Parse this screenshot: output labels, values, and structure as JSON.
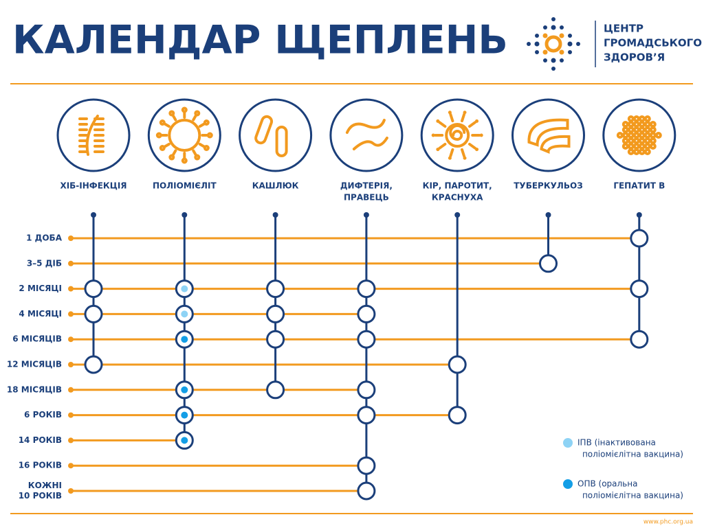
{
  "header": {
    "title": "КАЛЕНДАР ЩЕПЛЕНЬ",
    "logo": [
      "ЦЕНТР",
      "ГРОМАДСЬКОГО",
      "ЗДОРОВ’Я"
    ]
  },
  "diseases": [
    {
      "label": [
        "ХІБ-ІНФЕКЦІЯ"
      ],
      "doses": [
        2,
        3,
        5
      ]
    },
    {
      "label": [
        "ПОЛІОМІЄЛІТ"
      ],
      "doses": [
        2,
        3,
        4,
        6,
        7,
        8
      ],
      "dose_types": [
        "ipv",
        "ipv",
        "opv",
        "opv",
        "opv",
        "opv"
      ]
    },
    {
      "label": [
        "КАШЛЮК"
      ],
      "doses": [
        2,
        3,
        4,
        6
      ]
    },
    {
      "label": [
        "ДИФТЕРІЯ,",
        "ПРАВЕЦЬ"
      ],
      "doses": [
        2,
        3,
        4,
        6,
        7,
        9,
        10
      ]
    },
    {
      "label": [
        "КІР, ПАРОТИТ,",
        "КРАСНУХА"
      ],
      "doses": [
        5,
        7
      ]
    },
    {
      "label": [
        "ТУБЕРКУЛЬОЗ"
      ],
      "doses": [
        1
      ]
    },
    {
      "label": [
        "ГЕПАТИТ В"
      ],
      "doses": [
        0,
        2,
        4
      ]
    }
  ],
  "ages": [
    [
      "1 ДОБА"
    ],
    [
      "3–5 ДІБ"
    ],
    [
      "2 МІСЯЦІ"
    ],
    [
      "4 МІСЯЦІ"
    ],
    [
      "6 МІСЯЦІВ"
    ],
    [
      "12 МІСЯЦІВ"
    ],
    [
      "18 МІСЯЦІВ"
    ],
    [
      "6 РОКІВ"
    ],
    [
      "14 РОКІВ"
    ],
    [
      "16 РОКІВ"
    ],
    [
      "КОЖНІ",
      "10 РОКІВ"
    ]
  ],
  "legend": [
    {
      "type": "ipv",
      "color": "#8ed3f5",
      "label": [
        "ІПВ (інактивована",
        "поліомієлітна вакцина)"
      ]
    },
    {
      "type": "opv",
      "color": "#139ee6",
      "label": [
        "ОПВ (оральна",
        "поліомієлітна вакцина)"
      ]
    }
  ],
  "footer": {
    "url": "www.phc.org.ua"
  }
}
